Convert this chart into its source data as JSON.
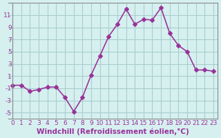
{
  "x": [
    0,
    1,
    2,
    3,
    4,
    5,
    6,
    7,
    8,
    9,
    10,
    11,
    12,
    13,
    14,
    15,
    16,
    17,
    18,
    19,
    20,
    21,
    22,
    23
  ],
  "y": [
    -0.5,
    -0.5,
    -1.5,
    -1.2,
    -0.8,
    -0.8,
    -2.5,
    -4.8,
    -2.5,
    1.2,
    4.3,
    7.5,
    9.5,
    12.0,
    9.5,
    10.3,
    10.2,
    12.2,
    8.0,
    6.0,
    5.0,
    2.0,
    2.0,
    1.8
  ],
  "line_color": "#993399",
  "marker": "D",
  "marker_size": 3,
  "linewidth": 1.2,
  "xlabel": "Windchill (Refroidissement éolien,°C)",
  "ylabel": "",
  "xlim": [
    -0.5,
    23.5
  ],
  "ylim": [
    -6,
    13
  ],
  "yticks": [
    -5,
    -3,
    -1,
    1,
    3,
    5,
    7,
    9,
    11
  ],
  "xticks": [
    0,
    1,
    2,
    3,
    4,
    5,
    6,
    7,
    8,
    9,
    10,
    11,
    12,
    13,
    14,
    15,
    16,
    17,
    18,
    19,
    20,
    21,
    22,
    23
  ],
  "grid_color": "#aacccc",
  "bg_color": "#d6f0f0",
  "tick_color": "#993399",
  "label_color": "#993399",
  "label_fontsize": 7.5,
  "tick_fontsize": 6.5
}
